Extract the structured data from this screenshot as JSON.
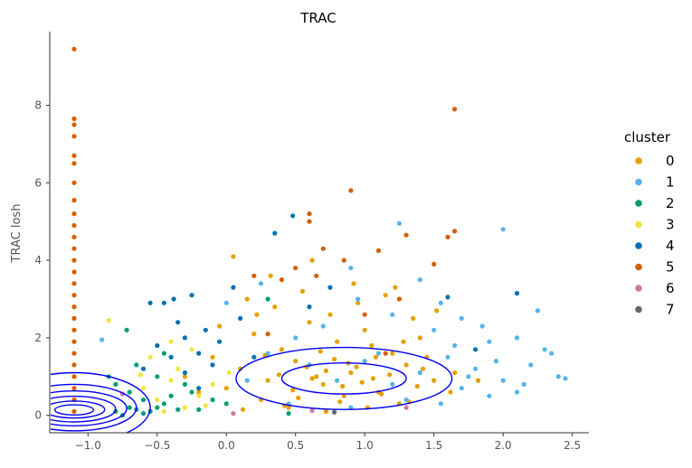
{
  "chart_data": {
    "type": "scatter",
    "title": "TRAC",
    "xlabel": "",
    "ylabel": "TRAC losh",
    "xlim": [
      -1.27,
      2.62
    ],
    "ylim": [
      -0.45,
      9.9
    ],
    "xticks": [
      -1.0,
      -0.5,
      0.0,
      0.5,
      1.0,
      1.5,
      2.0,
      2.5
    ],
    "xtick_labels": [
      "−1.0",
      "−0.5",
      "0.0",
      "0.5",
      "1.0",
      "1.5",
      "2.0",
      "2.5"
    ],
    "yticks": [
      0,
      2,
      4,
      6,
      8
    ],
    "ytick_labels": [
      "0",
      "2",
      "4",
      "6",
      "8"
    ],
    "grid": false,
    "legend": {
      "title": "cluster",
      "placement": "right",
      "entries": [
        {
          "label": "0",
          "color": "#E69F00"
        },
        {
          "label": "1",
          "color": "#56B4E9"
        },
        {
          "label": "2",
          "color": "#009E73"
        },
        {
          "label": "3",
          "color": "#F0E442"
        },
        {
          "label": "4",
          "color": "#0072B2"
        },
        {
          "label": "5",
          "color": "#D55E00"
        },
        {
          "label": "6",
          "color": "#CC79A7"
        },
        {
          "label": "7",
          "color": "#666666"
        }
      ]
    },
    "density_contour_color": "#0000ee",
    "density_contours": [
      {
        "cx": 0.85,
        "cy": 0.95,
        "rx": 0.78,
        "ry": 0.8
      },
      {
        "cx": 0.85,
        "cy": 0.95,
        "rx": 0.45,
        "ry": 0.4
      },
      {
        "cx": -1.1,
        "cy": 0.2,
        "rx": 0.55,
        "ry": 0.9
      },
      {
        "cx": -1.1,
        "cy": 0.2,
        "rx": 0.45,
        "ry": 0.6
      },
      {
        "cx": -1.1,
        "cy": 0.18,
        "rx": 0.38,
        "ry": 0.45
      },
      {
        "cx": -1.1,
        "cy": 0.16,
        "rx": 0.3,
        "ry": 0.33
      },
      {
        "cx": -1.1,
        "cy": 0.15,
        "rx": 0.22,
        "ry": 0.22
      },
      {
        "cx": -1.1,
        "cy": 0.14,
        "rx": 0.14,
        "ry": 0.13
      }
    ],
    "series": [
      {
        "name": "0",
        "color": "#E69F00",
        "points": [
          [
            0.1,
            1.2
          ],
          [
            0.3,
            0.9
          ],
          [
            0.5,
            1.4
          ],
          [
            0.7,
            0.8
          ],
          [
            0.9,
            1.1
          ],
          [
            1.1,
            0.6
          ],
          [
            1.3,
            1.3
          ],
          [
            1.5,
            0.9
          ],
          [
            0.2,
            2.1
          ],
          [
            0.4,
            1.7
          ],
          [
            0.6,
            2.4
          ],
          [
            0.8,
            1.9
          ],
          [
            1.0,
            2.2
          ],
          [
            1.2,
            1.6
          ],
          [
            1.4,
            2.0
          ],
          [
            0.0,
            0.7
          ],
          [
            0.25,
            0.4
          ],
          [
            0.45,
            0.2
          ],
          [
            0.65,
            1.0
          ],
          [
            0.85,
            0.5
          ],
          [
            1.05,
            1.8
          ],
          [
            1.25,
            0.3
          ],
          [
            1.45,
            1.5
          ],
          [
            1.65,
            1.1
          ],
          [
            -0.1,
            1.5
          ],
          [
            -0.3,
            1.0
          ],
          [
            -0.2,
            0.6
          ],
          [
            0.15,
            3.0
          ],
          [
            0.35,
            2.8
          ],
          [
            0.55,
            3.2
          ],
          [
            0.75,
            2.6
          ],
          [
            0.95,
            2.9
          ],
          [
            1.15,
            3.1
          ],
          [
            1.35,
            2.5
          ],
          [
            0.05,
            4.1
          ],
          [
            0.32,
            3.6
          ],
          [
            0.62,
            4.0
          ],
          [
            0.92,
            3.4
          ],
          [
            1.22,
            3.3
          ],
          [
            1.52,
            2.7
          ],
          [
            0.12,
            0.15
          ],
          [
            0.42,
            0.25
          ],
          [
            0.72,
            0.1
          ],
          [
            1.02,
            0.2
          ],
          [
            1.32,
            0.35
          ],
          [
            1.62,
            0.6
          ],
          [
            1.82,
            0.9
          ],
          [
            0.58,
            1.25
          ],
          [
            0.78,
            1.45
          ],
          [
            0.98,
            0.85
          ],
          [
            1.18,
            1.05
          ],
          [
            1.38,
            0.75
          ],
          [
            0.28,
            1.55
          ],
          [
            0.48,
            0.65
          ],
          [
            0.68,
            1.65
          ],
          [
            0.88,
            1.35
          ],
          [
            1.08,
            1.5
          ],
          [
            1.28,
            1.9
          ],
          [
            -0.05,
            2.3
          ],
          [
            0.22,
            2.6
          ],
          [
            0.52,
            0.45
          ],
          [
            0.82,
            0.35
          ],
          [
            1.12,
            0.55
          ],
          [
            1.42,
            1.2
          ],
          [
            0.38,
            1.05
          ],
          [
            0.62,
            0.95
          ],
          [
            0.84,
            0.75
          ],
          [
            1.06,
            0.95
          ],
          [
            0.72,
            1.15
          ],
          [
            0.94,
            1.25
          ]
        ]
      },
      {
        "name": "1",
        "color": "#56B4E9",
        "points": [
          [
            1.6,
            1.5
          ],
          [
            1.8,
            1.2
          ],
          [
            2.0,
            0.9
          ],
          [
            2.2,
            1.3
          ],
          [
            1.7,
            0.7
          ],
          [
            1.9,
            0.5
          ],
          [
            2.1,
            0.6
          ],
          [
            2.3,
            1.7
          ],
          [
            2.4,
            1.0
          ],
          [
            2.45,
            0.95
          ],
          [
            1.5,
            2.2
          ],
          [
            1.7,
            2.5
          ],
          [
            1.9,
            1.9
          ],
          [
            2.1,
            2.0
          ],
          [
            2.25,
            2.7
          ],
          [
            2.0,
            4.8
          ],
          [
            1.25,
            4.95
          ],
          [
            0.95,
            3.0
          ],
          [
            1.2,
            2.6
          ],
          [
            1.4,
            3.5
          ],
          [
            0.6,
            1.3
          ],
          [
            0.8,
            0.9
          ],
          [
            1.0,
            1.4
          ],
          [
            1.2,
            0.8
          ],
          [
            1.4,
            1.1
          ],
          [
            0.3,
            1.6
          ],
          [
            0.5,
            2.0
          ],
          [
            0.7,
            2.3
          ],
          [
            1.3,
            0.4
          ],
          [
            1.55,
            0.3
          ],
          [
            1.75,
            1.0
          ],
          [
            1.95,
            1.4
          ],
          [
            2.15,
            0.8
          ],
          [
            0.15,
            0.9
          ],
          [
            0.45,
            0.3
          ],
          [
            0.9,
            0.2
          ],
          [
            1.1,
            1.6
          ],
          [
            1.85,
            2.3
          ],
          [
            2.35,
            1.6
          ],
          [
            1.65,
            1.8
          ],
          [
            -0.9,
            1.95
          ],
          [
            0.0,
            2.9
          ],
          [
            0.25,
            3.4
          ],
          [
            0.9,
            3.8
          ],
          [
            1.55,
            2.9
          ]
        ]
      },
      {
        "name": "2",
        "color": "#009E73",
        "points": [
          [
            -0.8,
            0.1
          ],
          [
            -0.7,
            0.2
          ],
          [
            -0.6,
            0.05
          ],
          [
            -0.65,
            0.15
          ],
          [
            -0.75,
            0.0
          ],
          [
            -0.55,
            0.1
          ],
          [
            -0.5,
            0.2
          ],
          [
            -0.45,
            0.3
          ],
          [
            -0.6,
            0.4
          ],
          [
            -0.7,
            0.6
          ],
          [
            -0.8,
            0.8
          ],
          [
            -0.5,
            1.0
          ],
          [
            -0.4,
            0.5
          ],
          [
            -0.3,
            0.8
          ],
          [
            -0.2,
            0.15
          ],
          [
            -0.1,
            0.4
          ],
          [
            0.0,
            0.3
          ],
          [
            0.45,
            0.05
          ],
          [
            -0.72,
            2.2
          ],
          [
            -0.85,
            1.0
          ],
          [
            -0.65,
            1.3
          ],
          [
            -0.45,
            1.6
          ],
          [
            0.3,
            3.0
          ],
          [
            -0.35,
            0.15
          ],
          [
            -0.25,
            0.6
          ]
        ]
      },
      {
        "name": "3",
        "color": "#F0E442",
        "points": [
          [
            -0.6,
            0.7
          ],
          [
            -0.5,
            0.4
          ],
          [
            -0.4,
            0.9
          ],
          [
            -0.3,
            0.2
          ],
          [
            -0.2,
            0.5
          ],
          [
            -0.1,
            0.8
          ],
          [
            -0.35,
            1.2
          ],
          [
            -0.55,
            1.5
          ],
          [
            -0.25,
            1.7
          ],
          [
            -0.85,
            2.45
          ],
          [
            -0.45,
            0.1
          ],
          [
            -0.15,
            0.25
          ],
          [
            -0.4,
            1.9
          ],
          [
            0.02,
            1.1
          ],
          [
            -0.62,
            1.05
          ]
        ]
      },
      {
        "name": "4",
        "color": "#0072B2",
        "points": [
          [
            -0.5,
            1.8
          ],
          [
            -0.4,
            1.5
          ],
          [
            -0.3,
            2.0
          ],
          [
            -0.2,
            1.6
          ],
          [
            -0.35,
            2.4
          ],
          [
            -0.45,
            2.9
          ],
          [
            -0.25,
            3.1
          ],
          [
            -0.15,
            2.2
          ],
          [
            -0.05,
            1.9
          ],
          [
            0.1,
            2.5
          ],
          [
            -0.6,
            1.2
          ],
          [
            -0.3,
            1.1
          ],
          [
            -0.1,
            1.3
          ],
          [
            0.2,
            1.5
          ],
          [
            0.35,
            4.7
          ],
          [
            0.48,
            5.15
          ],
          [
            1.6,
            3.05
          ],
          [
            1.8,
            1.7
          ],
          [
            2.1,
            3.15
          ],
          [
            -0.55,
            2.9
          ],
          [
            0.6,
            2.8
          ],
          [
            0.75,
            3.3
          ],
          [
            0.05,
            3.3
          ],
          [
            -0.38,
            3.0
          ],
          [
            -0.2,
            0.7
          ]
        ]
      },
      {
        "name": "5",
        "color": "#D55E00",
        "points": [
          [
            -1.1,
            9.45
          ],
          [
            -1.1,
            7.65
          ],
          [
            -1.1,
            7.5
          ],
          [
            -1.1,
            7.2
          ],
          [
            -1.1,
            6.7
          ],
          [
            -1.1,
            6.5
          ],
          [
            -1.1,
            6.0
          ],
          [
            -1.1,
            5.55
          ],
          [
            -1.1,
            5.2
          ],
          [
            -1.1,
            4.9
          ],
          [
            -1.1,
            4.6
          ],
          [
            -1.1,
            4.3
          ],
          [
            -1.1,
            4.0
          ],
          [
            -1.1,
            3.7
          ],
          [
            -1.1,
            3.4
          ],
          [
            -1.1,
            3.1
          ],
          [
            -1.1,
            2.8
          ],
          [
            -1.1,
            2.5
          ],
          [
            -1.1,
            2.2
          ],
          [
            -1.1,
            1.9
          ],
          [
            -1.1,
            1.6
          ],
          [
            -1.1,
            1.3
          ],
          [
            -1.1,
            1.0
          ],
          [
            -1.1,
            0.7
          ],
          [
            -1.1,
            0.4
          ],
          [
            -1.1,
            0.1
          ],
          [
            0.9,
            5.8
          ],
          [
            1.65,
            7.9
          ],
          [
            0.6,
            5.2
          ],
          [
            0.6,
            5.0
          ],
          [
            1.3,
            4.65
          ],
          [
            1.6,
            4.6
          ],
          [
            1.65,
            4.75
          ],
          [
            1.1,
            4.25
          ],
          [
            0.5,
            3.8
          ],
          [
            0.4,
            3.5
          ],
          [
            0.65,
            3.6
          ],
          [
            1.5,
            3.9
          ],
          [
            1.25,
            3.0
          ],
          [
            0.3,
            2.1
          ],
          [
            1.0,
            2.6
          ],
          [
            1.15,
            1.6
          ],
          [
            0.7,
            4.3
          ],
          [
            0.85,
            4.0
          ],
          [
            0.2,
            3.6
          ]
        ]
      },
      {
        "name": "6",
        "color": "#CC79A7",
        "points": [
          [
            -0.75,
            0.55
          ],
          [
            0.05,
            0.05
          ],
          [
            0.62,
            0.12
          ],
          [
            1.3,
            0.2
          ]
        ]
      },
      {
        "name": "7",
        "color": "#666666",
        "points": [
          [
            0.78,
            0.08
          ]
        ]
      }
    ]
  }
}
